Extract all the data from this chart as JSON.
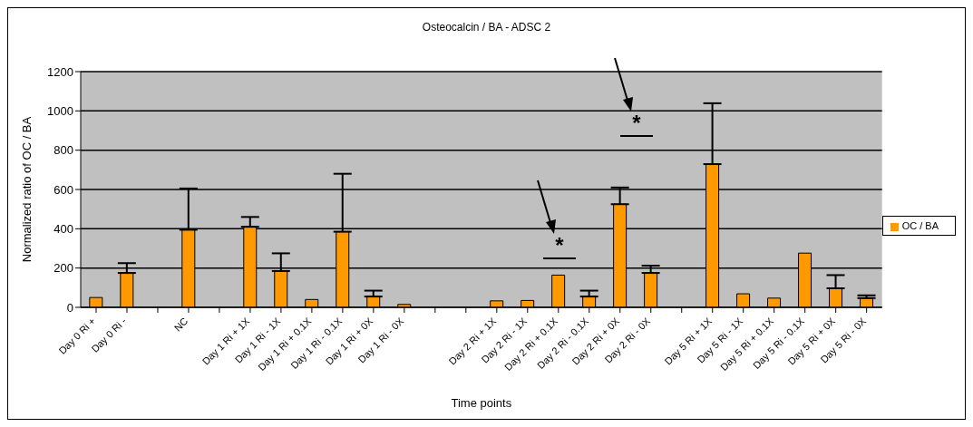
{
  "chart_data": {
    "type": "bar",
    "title": "Osteocalcin / BA - ADSC 2",
    "xlabel": "Time points",
    "ylabel": "Normalized ratio of OC / BA",
    "categories": [
      "Day 0 Ri +",
      "Day 0 Ri -",
      null,
      "NC",
      null,
      "Day 1 Ri + 1X",
      "Day 1 Ri - 1X",
      "Day 1 Ri + 0.1X",
      "Day 1 Ri - 0.1X",
      "Day 1 Ri + 0X",
      "Day 1 Ri - 0X",
      null,
      null,
      "Day 2 Ri + 1X",
      "Day 2 Ri - 1X",
      "Day 2 Ri + 0.1X",
      "Day 2 Ri - 0.1X",
      "Day 2 Ri + 0X",
      "Day 2 Ri - 0X",
      null,
      "Day 5 Ri + 1X",
      "Day 5 Ri - 1X",
      "Day 5 Ri + 0.1X",
      "Day 5 Ri - 0.1X",
      "Day 5 Ri + 0X",
      "Day 5 Ri - 0X"
    ],
    "series": [
      {
        "name": "OC / BA",
        "color": "#ff9900",
        "values": [
          50,
          175,
          null,
          395,
          null,
          410,
          185,
          40,
          385,
          55,
          15,
          null,
          null,
          33,
          35,
          164,
          55,
          525,
          175,
          null,
          729,
          69,
          47,
          276,
          97,
          47
        ],
        "errors": [
          null,
          [
            175,
            225
          ],
          null,
          [
            395,
            605
          ],
          null,
          [
            410,
            460
          ],
          [
            185,
            275
          ],
          null,
          [
            385,
            680
          ],
          [
            55,
            85
          ],
          null,
          null,
          null,
          null,
          null,
          null,
          [
            55,
            85
          ],
          [
            525,
            610
          ],
          [
            175,
            212
          ],
          null,
          [
            729,
            1039
          ],
          null,
          null,
          null,
          [
            97,
            164
          ],
          [
            47,
            61
          ]
        ]
      }
    ],
    "ylim": [
      0,
      1200
    ],
    "yticks": [
      0,
      200,
      400,
      600,
      800,
      1000,
      1200
    ],
    "grid": "y",
    "legend": "right",
    "annotations": [
      "*",
      "*"
    ]
  }
}
